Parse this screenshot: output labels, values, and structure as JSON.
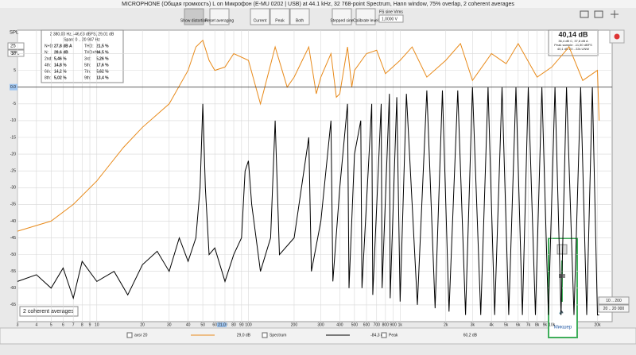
{
  "window": {
    "title": "MICROPHONE (Общая громкость) L on Микрофон (E-MU 0202 | USB) at 44.1 kHz, 32 768-point Spectrum, Hann window, 75% overlap, 2 coherent averages"
  },
  "toolbar": {
    "buttons": [
      "Show distortion",
      "Reset averaging",
      "Current",
      "Peak",
      "Both",
      "Stepped sine",
      "Calibrate level"
    ],
    "fs_label": "FS sine Vrms",
    "fs_value": "1,0000 V"
  },
  "left_controls": {
    "axis_name": "SPL",
    "range": "25",
    "unit": "SPL",
    "marker": "0.0"
  },
  "distortion_panel": {
    "header": [
      "2 380,00 Hz, -46,63 dBFS, 29,01 dB",
      "Span: 0 .. 20 947 Hz"
    ],
    "rows": [
      [
        "N+D:",
        "27,8 dB A",
        "THD:",
        "21,5 %"
      ],
      [
        "N:",
        "28,6 dB",
        "THD+N:",
        "94,5 %"
      ],
      [
        "2nd:",
        "5,46 %",
        "3rd:",
        "5,26 %"
      ],
      [
        "4th:",
        "14,8 %",
        "5th:",
        "17,6 %"
      ],
      [
        "6th:",
        "14,2 %",
        "7th:",
        "5,62 %"
      ],
      [
        "8th:",
        "5,02 %",
        "9th:",
        "13,4 %"
      ]
    ]
  },
  "level_panel": {
    "value": "40,14 dB",
    "lines": [
      "36,4 dB C, 37,8 dB A",
      "Peak sample: -11,50 dBFS",
      "40,1 dB Z0 - 22k UNW"
    ]
  },
  "chart_data": {
    "type": "line",
    "log_x": true,
    "grid": true,
    "xlim": [
      3,
      25000
    ],
    "ylim": [
      -70,
      17
    ],
    "xticks": [
      3,
      4,
      5,
      6,
      7,
      8,
      9,
      10,
      20,
      30,
      40,
      50,
      60,
      70,
      80,
      90,
      100,
      200,
      300,
      400,
      500,
      600,
      700,
      800,
      900,
      {
        "value": 1000,
        "label": "1k"
      },
      {
        "value": 2000,
        "label": "2k"
      },
      {
        "value": 3000,
        "label": "3k"
      },
      {
        "value": 4000,
        "label": "4k"
      },
      {
        "value": 5000,
        "label": "5k"
      },
      {
        "value": 6000,
        "label": "6k"
      },
      {
        "value": 7000,
        "label": "7k"
      },
      {
        "value": 8000,
        "label": "8k"
      },
      {
        "value": 9000,
        "label": "9k"
      },
      {
        "value": 10000,
        "label": "10k"
      },
      {
        "value": 20000,
        "label": "20k"
      }
    ],
    "yticks": [
      10,
      5,
      0,
      -5,
      -10,
      -15,
      -20,
      -25,
      -30,
      -35,
      -40,
      -45,
      -50,
      -55,
      -60,
      -65
    ],
    "cursor_label": "21,0",
    "series": [
      {
        "name": "avsr 20",
        "color": "#e88a1a",
        "readout": "29,0 dB",
        "x": [
          3,
          5,
          7,
          10,
          15,
          20,
          30,
          40,
          45,
          50,
          55,
          60,
          70,
          80,
          100,
          120,
          150,
          180,
          200,
          250,
          280,
          300,
          350,
          380,
          400,
          450,
          480,
          500,
          600,
          700,
          800,
          1000,
          1200,
          1500,
          2000,
          2500,
          3000,
          4000,
          5000,
          6000,
          8000,
          10000,
          13000,
          16000,
          20000,
          20500
        ],
        "values": [
          -43,
          -40,
          -35,
          -28,
          -18,
          -12,
          -5,
          5,
          12,
          14,
          8,
          5,
          6,
          10,
          8,
          -5,
          12,
          0,
          3,
          12,
          -2,
          3,
          10,
          -3,
          -2,
          12,
          0,
          5,
          10,
          11,
          4,
          8,
          12,
          3,
          8,
          13,
          2,
          10,
          7,
          13,
          3,
          6,
          12,
          2,
          5,
          -10
        ]
      },
      {
        "name": "Spectrum",
        "color": "#000000",
        "readout": "-84,3 dB",
        "x": [
          3,
          4,
          5,
          6,
          7,
          8,
          10,
          13,
          16,
          20,
          25,
          30,
          35,
          40,
          45,
          48,
          50,
          52,
          55,
          60,
          70,
          80,
          90,
          95,
          100,
          105,
          120,
          140,
          150,
          160,
          200,
          250,
          260,
          300,
          350,
          360,
          400,
          450,
          460,
          500,
          550,
          560,
          650,
          660,
          750,
          760,
          850,
          860,
          950,
          1000,
          1100,
          1300,
          1500,
          1700,
          1900,
          2100,
          2400,
          2700,
          3000,
          3400,
          3800,
          4200,
          4700,
          5200,
          5800,
          6400,
          7000,
          7800,
          8600,
          9500,
          10500,
          11500,
          12500,
          14000,
          15500,
          17000,
          18500,
          20000,
          20500
        ],
        "values": [
          -58,
          -56,
          -60,
          -54,
          -63,
          -52,
          -58,
          -55,
          -62,
          -53,
          -49,
          -55,
          -45,
          -52,
          -45,
          -30,
          -5,
          -30,
          -50,
          -48,
          -58,
          -50,
          -45,
          -25,
          -22,
          -35,
          -55,
          -45,
          -10,
          -50,
          -45,
          -15,
          -55,
          -40,
          -10,
          -58,
          -30,
          -5,
          -60,
          -20,
          -10,
          -60,
          -5,
          -62,
          -5,
          -60,
          -2,
          -63,
          -3,
          -64,
          -2,
          -65,
          -1,
          -66,
          -1,
          -67,
          -1,
          -68,
          0,
          -68,
          0,
          -68,
          0,
          -68,
          0,
          -68,
          0,
          -68,
          0,
          -68,
          0,
          -68,
          0,
          -68,
          0,
          -68,
          0,
          -68,
          -68
        ]
      }
    ],
    "extra_legend": {
      "name": "Peak",
      "readout": "60,2 dB"
    }
  },
  "averages_label": "2 coherent averages",
  "range_buttons": [
    "10 .. 200",
    "20 .. 20 000"
  ],
  "mixer": {
    "label": "Микшер"
  }
}
